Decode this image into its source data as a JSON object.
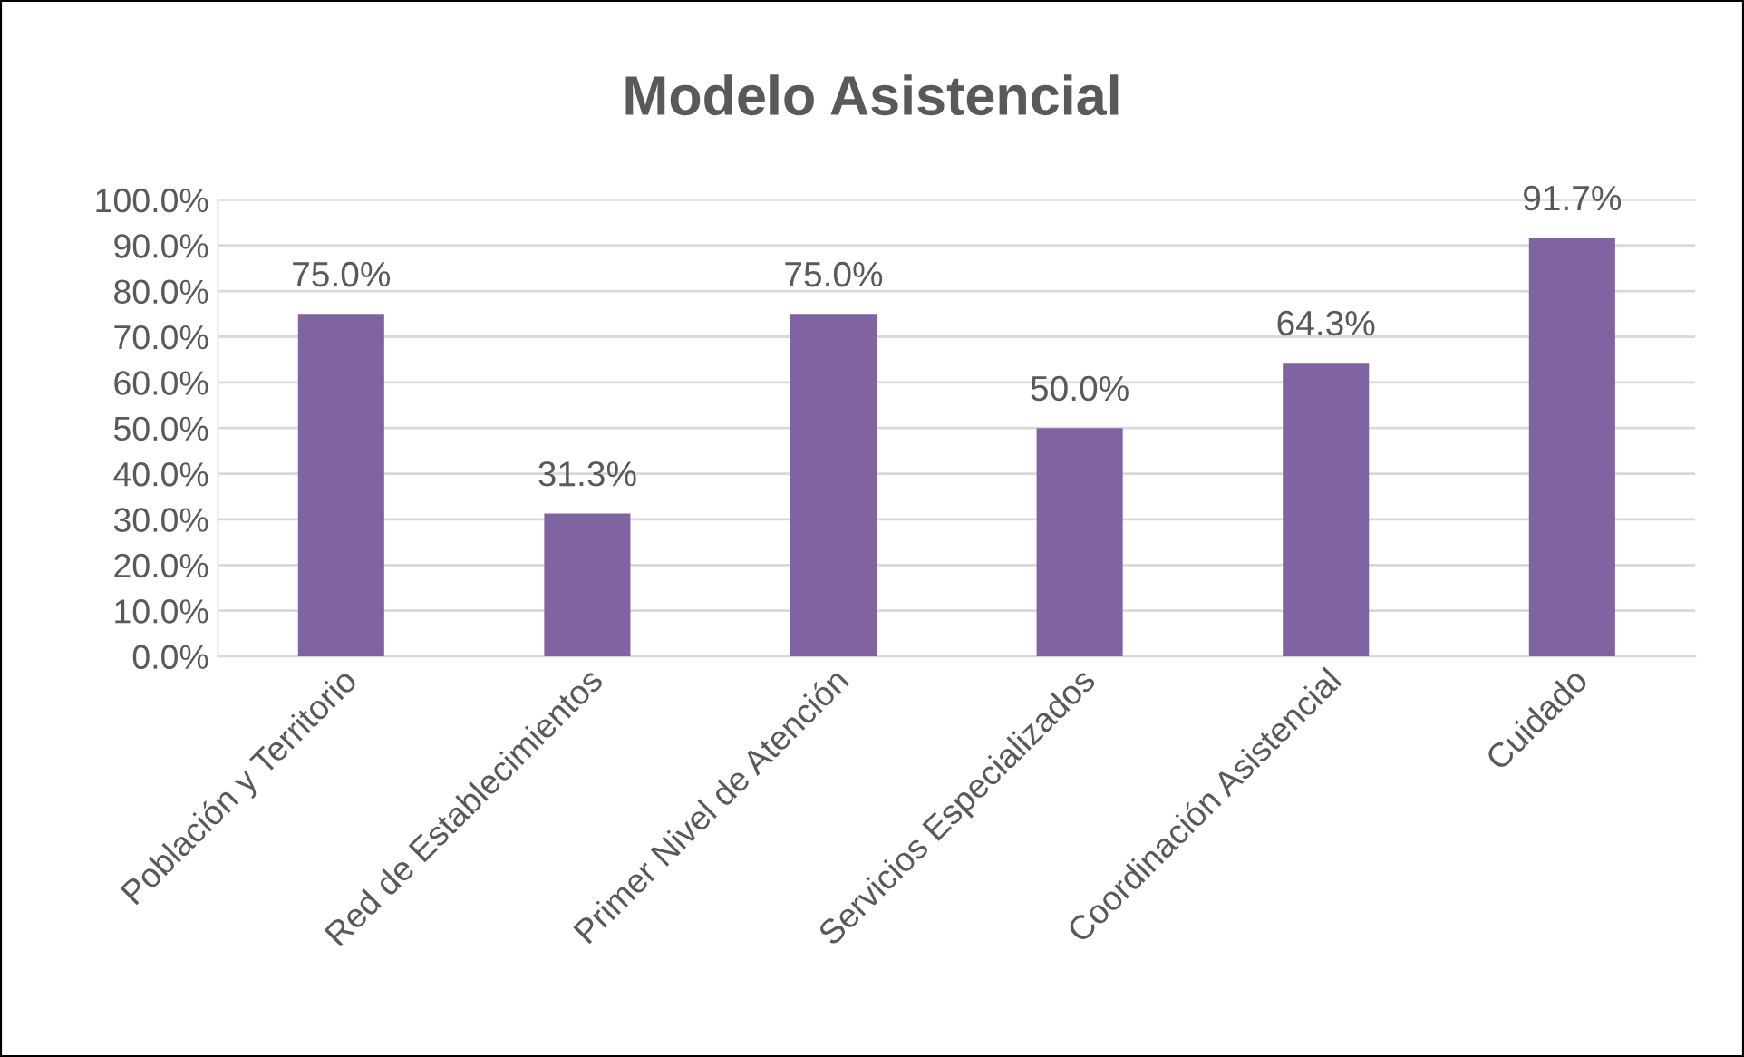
{
  "chart_data": {
    "type": "bar",
    "title": "Modelo Asistencial",
    "categories": [
      "Población y Territorio",
      "Red de Establecimientos",
      "Primer Nivel de Atención",
      "Servicios Especializados",
      "Coordinación Asistencial",
      "Cuidado"
    ],
    "values": [
      75.0,
      31.3,
      75.0,
      50.0,
      64.3,
      91.7
    ],
    "value_labels": [
      "75.0%",
      "31.3%",
      "75.0%",
      "50.0%",
      "64.3%",
      "91.7%"
    ],
    "color": "#8064a2",
    "ylim": [
      0,
      100
    ],
    "yticks": [
      {
        "value": 0,
        "label": "0.0%"
      },
      {
        "value": 10,
        "label": "10.0%"
      },
      {
        "value": 20,
        "label": "20.0%"
      },
      {
        "value": 30,
        "label": "30.0%"
      },
      {
        "value": 40,
        "label": "40.0%"
      },
      {
        "value": 50,
        "label": "50.0%"
      },
      {
        "value": 60,
        "label": "60.0%"
      },
      {
        "value": 70,
        "label": "70.0%"
      },
      {
        "value": 80,
        "label": "80.0%"
      },
      {
        "value": 90,
        "label": "90.0%"
      },
      {
        "value": 100,
        "label": "100.0%"
      }
    ],
    "grid": "y",
    "legend": false
  }
}
